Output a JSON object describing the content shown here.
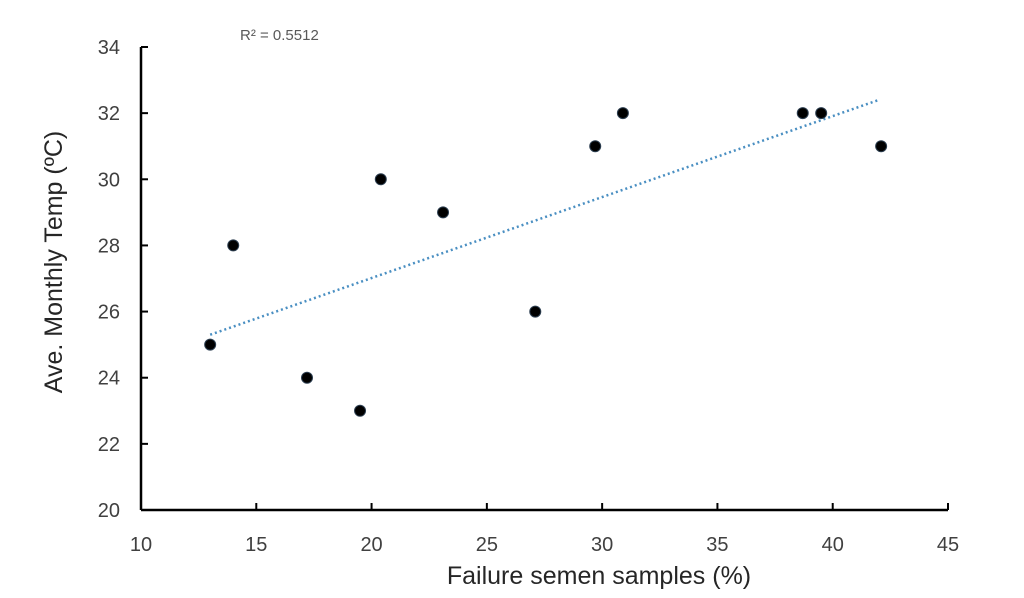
{
  "chart_data": {
    "type": "scatter",
    "title": "",
    "xlabel": "Failure semen samples (%)",
    "ylabel": "Ave. Monthly Temp (ºC)",
    "xlim": [
      10,
      45
    ],
    "ylim": [
      20,
      34
    ],
    "xticks": [
      "10",
      "15",
      "20",
      "25",
      "30",
      "35",
      "40",
      "45"
    ],
    "yticks": [
      "20",
      "22",
      "24",
      "26",
      "28",
      "30",
      "32",
      "34"
    ],
    "grid": false,
    "legend": "none",
    "series": [
      {
        "x": [
          13.0,
          14.0,
          17.2,
          19.5,
          20.4,
          23.1,
          27.1,
          29.7,
          30.9,
          38.7,
          39.5,
          42.1
        ],
        "y": [
          25,
          28,
          24,
          23,
          30,
          29,
          26,
          31,
          32,
          32,
          32,
          31
        ]
      }
    ],
    "trendline": {
      "type": "linear",
      "x_range": [
        13.0,
        42.0
      ],
      "y_range": [
        25.3,
        32.4
      ],
      "label": "R² = 0.5512",
      "color": "#4a8fc2"
    },
    "marker_color": "#000000"
  }
}
